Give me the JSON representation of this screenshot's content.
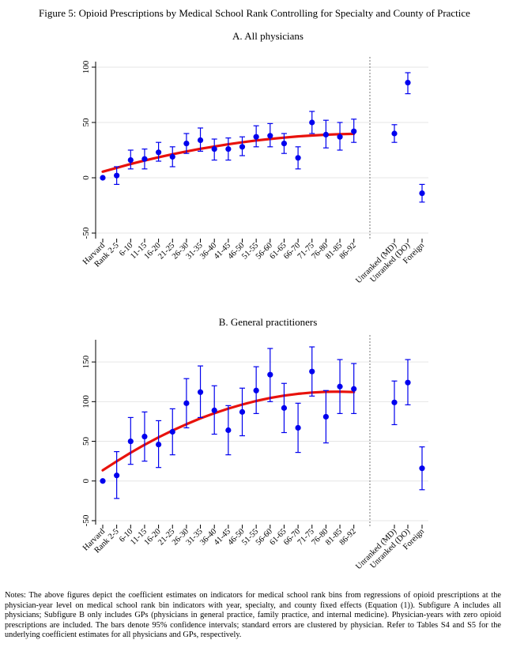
{
  "figure_title": "Figure 5: Opioid Prescriptions by Medical School Rank Controlling for Specialty and County of Practice",
  "notes": "Notes: The above figures depict the coefficient estimates on indicators for medical school rank bins from regressions of opioid prescriptions at the physician-year level on medical school rank bin indicators with year, specialty, and county fixed effects (Equation (1)). Subfigure A includes all physicians; Subfigure B only includes GPs (physicians in general practice, family practice, and internal medicine). Physician-years with zero opioid prescriptions are included. The bars denote 95% confidence intervals; standard errors are clustered by physician. Refer to Tables S4 and S5 for the underlying coefficient estimates for all physicians and GPs, respectively.",
  "colors": {
    "points": "#0000ee",
    "fit": "#e8120c",
    "axis": "#000000",
    "grid": "#e6e6e6",
    "separator": "#777777"
  },
  "chart_data": [
    {
      "type": "scatter",
      "title": "A. All physicians",
      "categories": [
        "Harvard",
        "Rank 2-5",
        "6-10",
        "11-15",
        "16-20",
        "21-25",
        "26-30",
        "31-35",
        "36-40",
        "41-45",
        "46-50",
        "51-55",
        "56-60",
        "61-65",
        "66-70",
        "71-75",
        "76-80",
        "81-85",
        "86-92"
      ],
      "values": [
        0,
        2,
        16,
        17,
        23,
        19,
        31,
        34,
        26,
        26,
        28,
        37,
        38,
        31,
        18,
        50,
        39,
        37,
        42
      ],
      "ci_low": [
        0,
        -6,
        8,
        8,
        15,
        10,
        22,
        24,
        16,
        16,
        20,
        28,
        28,
        22,
        8,
        40,
        27,
        25,
        32
      ],
      "ci_high": [
        0,
        10,
        25,
        26,
        32,
        28,
        40,
        45,
        35,
        36,
        37,
        47,
        49,
        40,
        28,
        60,
        52,
        50,
        53
      ],
      "fit_line": [
        5.5,
        9,
        12.4,
        15.6,
        18.5,
        21.3,
        23.8,
        26.2,
        28.3,
        30.3,
        32.1,
        33.7,
        35.1,
        36.3,
        37.4,
        38.2,
        38.9,
        39.4,
        39.7
      ],
      "unranked_categories": [
        "Unranked (MD)",
        "Unranked (DO)",
        "Foreign"
      ],
      "unranked_values": [
        40,
        86,
        -14
      ],
      "unranked_ci_low": [
        32,
        76,
        -22
      ],
      "unranked_ci_high": [
        48,
        95,
        -6
      ],
      "yticks": [
        -50,
        0,
        50,
        100
      ],
      "ylim": [
        -55,
        105
      ],
      "grid": true
    },
    {
      "type": "scatter",
      "title": "B. General practitioners",
      "categories": [
        "Harvard",
        "Rank 2-5",
        "6-10",
        "11-15",
        "16-20",
        "21-25",
        "26-30",
        "31-35",
        "36-40",
        "41-45",
        "46-50",
        "51-55",
        "56-60",
        "61-65",
        "66-70",
        "71-75",
        "76-80",
        "81-85",
        "86-92"
      ],
      "values": [
        0,
        7,
        50,
        56,
        46,
        62,
        98,
        112,
        89,
        64,
        87,
        114,
        134,
        92,
        67,
        138,
        81,
        119,
        116
      ],
      "ci_low": [
        0,
        -22,
        21,
        25,
        17,
        33,
        67,
        80,
        59,
        33,
        57,
        85,
        100,
        61,
        36,
        107,
        48,
        85,
        85
      ],
      "ci_high": [
        0,
        37,
        80,
        87,
        76,
        91,
        129,
        145,
        120,
        95,
        117,
        144,
        167,
        123,
        98,
        169,
        114,
        153,
        148
      ],
      "fit_line": [
        13.5,
        24.9,
        35.6,
        45.7,
        55.0,
        63.7,
        71.6,
        78.9,
        85.4,
        91.3,
        96.4,
        100.8,
        104.6,
        107.6,
        109.9,
        111.5,
        112.4,
        112.6,
        112.1
      ],
      "unranked_categories": [
        "Unranked (MD)",
        "Unranked (DO)",
        "Foreign"
      ],
      "unranked_values": [
        99,
        124,
        16
      ],
      "unranked_ci_low": [
        71,
        96,
        -11
      ],
      "unranked_ci_high": [
        126,
        153,
        43
      ],
      "yticks": [
        -50,
        0,
        50,
        100,
        150
      ],
      "ylim": [
        -55,
        178
      ],
      "grid": true
    }
  ]
}
